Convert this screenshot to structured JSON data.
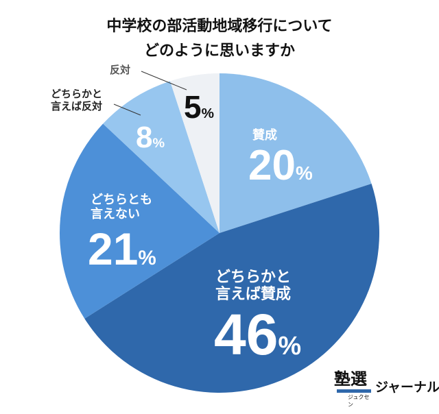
{
  "chart_data": {
    "type": "pie",
    "title": [
      "中学校の部活動地域移行について",
      "どのように思いますか"
    ],
    "start": "top",
    "direction": "clockwise",
    "slices": [
      {
        "label": "賛成",
        "value": 20,
        "display": "20",
        "color": "#8ebfeb"
      },
      {
        "label": "どちらかと言えば賛成",
        "label_lines": [
          "どちらかと",
          "言えば賛成"
        ],
        "value": 46,
        "display": "46",
        "color": "#2f68ab"
      },
      {
        "label": "どちらとも言えない",
        "label_lines": [
          "どちらとも",
          "言えない"
        ],
        "value": 21,
        "display": "21",
        "color": "#4d90d8"
      },
      {
        "label": "どちらかと言えば反対",
        "label_lines": [
          "どちらかと",
          "言えば反対"
        ],
        "value": 8,
        "display": "8",
        "color": "#97c6ef"
      },
      {
        "label": "反対",
        "value": 5,
        "display": "5",
        "color": "#eef1f5"
      }
    ],
    "unit": "%"
  },
  "logo": {
    "kanji": "塾選",
    "kana": "ジュクセン",
    "text": "ジャーナル"
  }
}
